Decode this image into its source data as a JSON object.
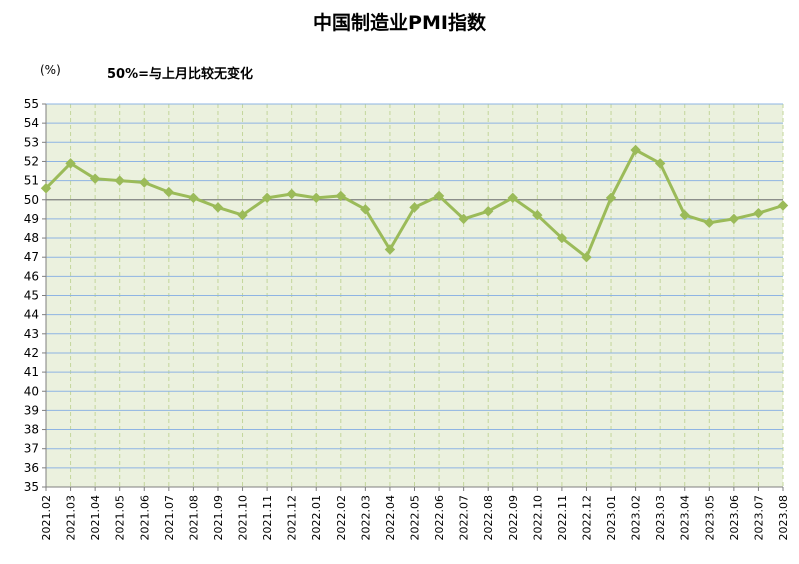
{
  "chart_data": {
    "type": "line",
    "title": "中国制造业PMI指数",
    "unit": "(%)",
    "annotation": "50%=与上月比较无变化",
    "ylim": [
      35,
      55
    ],
    "y_ticks": [
      35,
      36,
      37,
      38,
      39,
      40,
      41,
      42,
      43,
      44,
      45,
      46,
      47,
      48,
      49,
      50,
      51,
      52,
      53,
      54,
      55
    ],
    "reference_line": 50,
    "grid": true,
    "categories": [
      "2021.02",
      "2021.03",
      "2021.04",
      "2021.05",
      "2021.06",
      "2021.07",
      "2021.08",
      "2021.09",
      "2021.10",
      "2021.11",
      "2021.12",
      "2022.01",
      "2022.02",
      "2022.03",
      "2022.04",
      "2022.05",
      "2022.06",
      "2022.07",
      "2022.08",
      "2022.09",
      "2022.10",
      "2022.11",
      "2022.12",
      "2023.01",
      "2023.02",
      "2023.03",
      "2023.04",
      "2023.05",
      "2023.06",
      "2023.07",
      "2023.08"
    ],
    "series": [
      {
        "values": [
          50.6,
          51.9,
          51.1,
          51.0,
          50.9,
          50.4,
          50.1,
          49.6,
          49.2,
          50.1,
          50.3,
          50.1,
          50.2,
          49.5,
          47.4,
          49.6,
          50.2,
          49.0,
          49.4,
          50.1,
          49.2,
          48.0,
          47.0,
          50.1,
          52.6,
          51.9,
          49.2,
          48.8,
          49.0,
          49.3,
          49.7
        ],
        "color": "#9bbb59"
      }
    ],
    "colors": {
      "plot_background": "#ebf1de",
      "grid_horizontal": "#8eb4e3",
      "grid_vertical": "#c3d69b",
      "reference_line": "#7f7f7f",
      "axis": "#7f7f7f"
    }
  }
}
